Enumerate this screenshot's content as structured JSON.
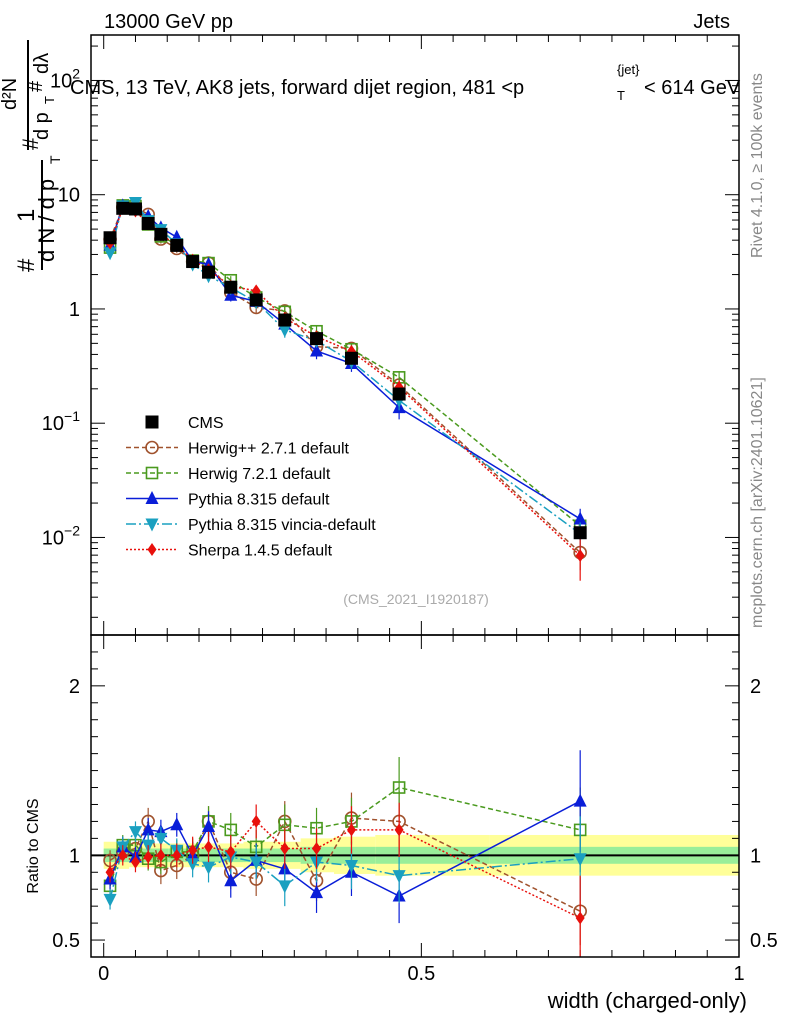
{
  "header": {
    "energy_label": "13000 GeV pp",
    "category_label": "Jets",
    "plot_title_main": "CMS, 13 TeV, AK8 jets, forward dijet region, 481 <p",
    "plot_title_sub": "T",
    "plot_title_sup": "{jet}",
    "plot_title_end": "< 614 GeV",
    "ref_label": "(CMS_2021_I1920187)",
    "right_label_top": "Rivet 4.1.0, ≥ 100k events",
    "right_label_bottom": "mcplots.cern.ch [arXiv:2401.10621]"
  },
  "chart_data": {
    "type": "line",
    "title": "CMS, 13 TeV, AK8 jets, forward dijet region, 481 <p_T^{jet}< 614 GeV",
    "xlabel": "width (charged-only)",
    "ylabel": "1/(dN/dp_T) d²N/(dp_T dλ)",
    "ratio_ylabel": "Ratio to CMS",
    "xlim": [
      -0.02,
      1.0
    ],
    "ylim": [
      0.0014,
      250
    ],
    "ratio_ylim": [
      0.4,
      2.3
    ],
    "y_scale": "log",
    "x_ticks": [
      0,
      0.5,
      1
    ],
    "x_tick_labels": [
      "0",
      "0.5",
      "1"
    ],
    "y_ticks": [
      0.01,
      0.1,
      1,
      10,
      100
    ],
    "y_tick_labels": [
      {
        "base": "10",
        "exp": "−2"
      },
      {
        "base": "10",
        "exp": "−1"
      },
      {
        "base": "1",
        "exp": ""
      },
      {
        "base": "10",
        "exp": ""
      },
      {
        "base": "10",
        "exp": "2"
      }
    ],
    "ratio_ticks": [
      0.5,
      1,
      2
    ],
    "ratio_tick_labels": [
      "0.5",
      "1",
      "2"
    ],
    "x": [
      0.01,
      0.03,
      0.05,
      0.07,
      0.09,
      0.115,
      0.14,
      0.165,
      0.2,
      0.24,
      0.285,
      0.335,
      0.39,
      0.465,
      0.75
    ],
    "data": {
      "name": "CMS",
      "values": [
        4.2,
        7.6,
        7.5,
        5.6,
        4.5,
        3.6,
        2.6,
        2.1,
        1.55,
        1.2,
        0.8,
        0.55,
        0.37,
        0.18,
        0.011
      ],
      "band_inner": [
        0.04,
        0.04,
        0.04,
        0.04,
        0.04,
        0.04,
        0.04,
        0.04,
        0.04,
        0.04,
        0.04,
        0.05,
        0.05,
        0.05,
        0.05
      ],
      "band_outer": [
        0.08,
        0.08,
        0.07,
        0.07,
        0.07,
        0.07,
        0.07,
        0.07,
        0.07,
        0.08,
        0.08,
        0.1,
        0.11,
        0.12,
        0.12
      ]
    },
    "series": [
      {
        "name": "Herwig++ 2.7.1 default",
        "color": "#a0522d",
        "marker": "open-circle",
        "dash": "5,3",
        "ratio": [
          0.97,
          1.02,
          1.04,
          1.2,
          0.91,
          0.94,
          1.0,
          1.2,
          0.9,
          0.86,
          1.2,
          0.85,
          1.22,
          1.2,
          0.67
        ],
        "ratio_err": [
          0.06,
          0.06,
          0.06,
          0.08,
          0.08,
          0.08,
          0.08,
          0.09,
          0.1,
          0.1,
          0.12,
          0.12,
          0.15,
          0.18,
          0.2
        ]
      },
      {
        "name": "Herwig 7.2.1 default",
        "color": "#4a9a1e",
        "marker": "open-square",
        "dash": "5,3",
        "ratio": [
          0.82,
          1.06,
          1.06,
          0.98,
          0.96,
          1.02,
          1.02,
          1.2,
          1.15,
          1.05,
          1.18,
          1.16,
          1.2,
          1.4,
          1.15
        ],
        "ratio_err": [
          0.06,
          0.06,
          0.06,
          0.07,
          0.07,
          0.07,
          0.08,
          0.09,
          0.1,
          0.1,
          0.12,
          0.12,
          0.14,
          0.18,
          0.25
        ]
      },
      {
        "name": "Pythia 8.315 default",
        "color": "#0a1ed8",
        "marker": "filled-triangle-up",
        "dash": "",
        "ratio": [
          0.86,
          1.05,
          0.99,
          1.15,
          1.14,
          1.18,
          1.0,
          1.17,
          0.85,
          0.97,
          0.92,
          0.78,
          0.9,
          0.76,
          1.32
        ],
        "ratio_err": [
          0.06,
          0.06,
          0.06,
          0.07,
          0.07,
          0.07,
          0.08,
          0.09,
          0.1,
          0.1,
          0.12,
          0.12,
          0.14,
          0.16,
          0.3
        ]
      },
      {
        "name": "Pythia 8.315 vincia-default",
        "color": "#1aa0c0",
        "marker": "filled-triangle-down",
        "dash": "10,3,2,3",
        "ratio": [
          0.74,
          1.05,
          1.14,
          1.06,
          1.1,
          1.03,
          0.95,
          0.93,
          0.99,
          0.96,
          0.82,
          0.96,
          0.94,
          0.88,
          0.98
        ],
        "ratio_err": [
          0.06,
          0.06,
          0.06,
          0.07,
          0.07,
          0.07,
          0.08,
          0.09,
          0.1,
          0.1,
          0.12,
          0.12,
          0.14,
          0.16,
          0.25
        ]
      },
      {
        "name": "Sherpa 1.4.5 default",
        "color": "#e8100c",
        "marker": "filled-diamond",
        "dash": "2,2",
        "ratio": [
          0.9,
          1.0,
          0.96,
          0.99,
          1.0,
          1.0,
          1.03,
          1.05,
          1.02,
          1.2,
          1.04,
          1.04,
          1.15,
          1.15,
          0.63
        ],
        "ratio_err": [
          0.06,
          0.06,
          0.06,
          0.07,
          0.07,
          0.07,
          0.08,
          0.09,
          0.1,
          0.1,
          0.12,
          0.12,
          0.14,
          0.16,
          0.25
        ]
      }
    ],
    "legend_position": "lower-left"
  }
}
